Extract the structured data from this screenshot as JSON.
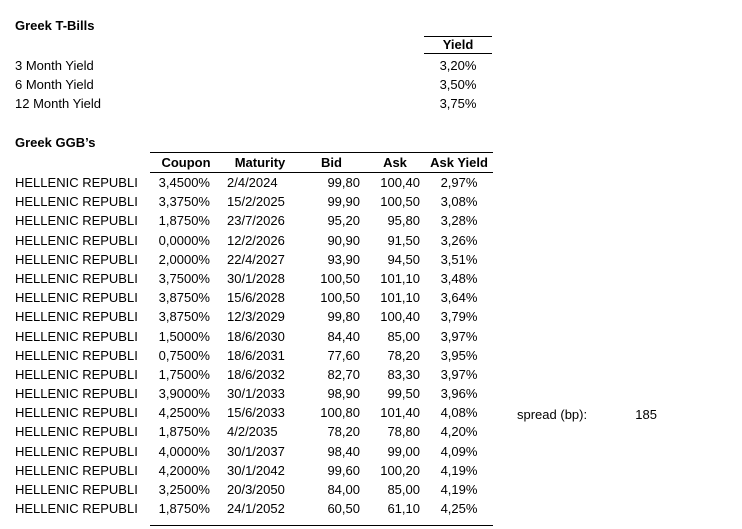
{
  "colors": {
    "text": "#000000",
    "background": "#ffffff",
    "border": "#000000"
  },
  "tbills": {
    "title": "Greek T-Bills",
    "yield_header": "Yield",
    "rows": [
      {
        "label": "3 Month Yield",
        "value": "3,20%"
      },
      {
        "label": "6 Month Yield",
        "value": "3,50%"
      },
      {
        "label": "12 Month Yield",
        "value": "3,75%"
      }
    ]
  },
  "ggb": {
    "title": "Greek GGB’s",
    "columns": [
      "Coupon",
      "Maturity",
      "Bid",
      "Ask",
      "Ask Yield"
    ],
    "rows": [
      {
        "issuer": "HELLENIC REPUBLI",
        "coupon": "3,4500%",
        "maturity": "2/4/2024",
        "bid": "99,80",
        "ask": "100,40",
        "ask_yield": "2,97%"
      },
      {
        "issuer": "HELLENIC REPUBLI",
        "coupon": "3,3750%",
        "maturity": "15/2/2025",
        "bid": "99,90",
        "ask": "100,50",
        "ask_yield": "3,08%"
      },
      {
        "issuer": "HELLENIC REPUBLI",
        "coupon": "1,8750%",
        "maturity": "23/7/2026",
        "bid": "95,20",
        "ask": "95,80",
        "ask_yield": "3,28%"
      },
      {
        "issuer": "HELLENIC REPUBLI",
        "coupon": "0,0000%",
        "maturity": "12/2/2026",
        "bid": "90,90",
        "ask": "91,50",
        "ask_yield": "3,26%"
      },
      {
        "issuer": "HELLENIC REPUBLI",
        "coupon": "2,0000%",
        "maturity": "22/4/2027",
        "bid": "93,90",
        "ask": "94,50",
        "ask_yield": "3,51%"
      },
      {
        "issuer": "HELLENIC REPUBLI",
        "coupon": "3,7500%",
        "maturity": "30/1/2028",
        "bid": "100,50",
        "ask": "101,10",
        "ask_yield": "3,48%"
      },
      {
        "issuer": "HELLENIC REPUBLI",
        "coupon": "3,8750%",
        "maturity": "15/6/2028",
        "bid": "100,50",
        "ask": "101,10",
        "ask_yield": "3,64%"
      },
      {
        "issuer": "HELLENIC REPUBLI",
        "coupon": "3,8750%",
        "maturity": "12/3/2029",
        "bid": "99,80",
        "ask": "100,40",
        "ask_yield": "3,79%"
      },
      {
        "issuer": "HELLENIC REPUBLI",
        "coupon": "1,5000%",
        "maturity": "18/6/2030",
        "bid": "84,40",
        "ask": "85,00",
        "ask_yield": "3,97%"
      },
      {
        "issuer": "HELLENIC REPUBLI",
        "coupon": "0,7500%",
        "maturity": "18/6/2031",
        "bid": "77,60",
        "ask": "78,20",
        "ask_yield": "3,95%"
      },
      {
        "issuer": "HELLENIC REPUBLI",
        "coupon": "1,7500%",
        "maturity": "18/6/2032",
        "bid": "82,70",
        "ask": "83,30",
        "ask_yield": "3,97%"
      },
      {
        "issuer": "HELLENIC REPUBLI",
        "coupon": "3,9000%",
        "maturity": "30/1/2033",
        "bid": "98,90",
        "ask": "99,50",
        "ask_yield": "3,96%"
      },
      {
        "issuer": "HELLENIC REPUBLI",
        "coupon": "4,2500%",
        "maturity": "15/6/2033",
        "bid": "100,80",
        "ask": "101,40",
        "ask_yield": "4,08%"
      },
      {
        "issuer": "HELLENIC REPUBLI",
        "coupon": "1,8750%",
        "maturity": "4/2/2035",
        "bid": "78,20",
        "ask": "78,80",
        "ask_yield": "4,20%"
      },
      {
        "issuer": "HELLENIC REPUBLI",
        "coupon": "4,0000%",
        "maturity": "30/1/2037",
        "bid": "98,40",
        "ask": "99,00",
        "ask_yield": "4,09%"
      },
      {
        "issuer": "HELLENIC REPUBLI",
        "coupon": "4,2000%",
        "maturity": "30/1/2042",
        "bid": "99,60",
        "ask": "100,20",
        "ask_yield": "4,19%"
      },
      {
        "issuer": "HELLENIC REPUBLI",
        "coupon": "3,2500%",
        "maturity": "20/3/2050",
        "bid": "84,00",
        "ask": "85,00",
        "ask_yield": "4,19%"
      },
      {
        "issuer": "HELLENIC REPUBLI",
        "coupon": "1,8750%",
        "maturity": "24/1/2052",
        "bid": "60,50",
        "ask": "61,10",
        "ask_yield": "4,25%"
      }
    ]
  },
  "spread": {
    "label": "spread (bp):",
    "value": "185"
  }
}
